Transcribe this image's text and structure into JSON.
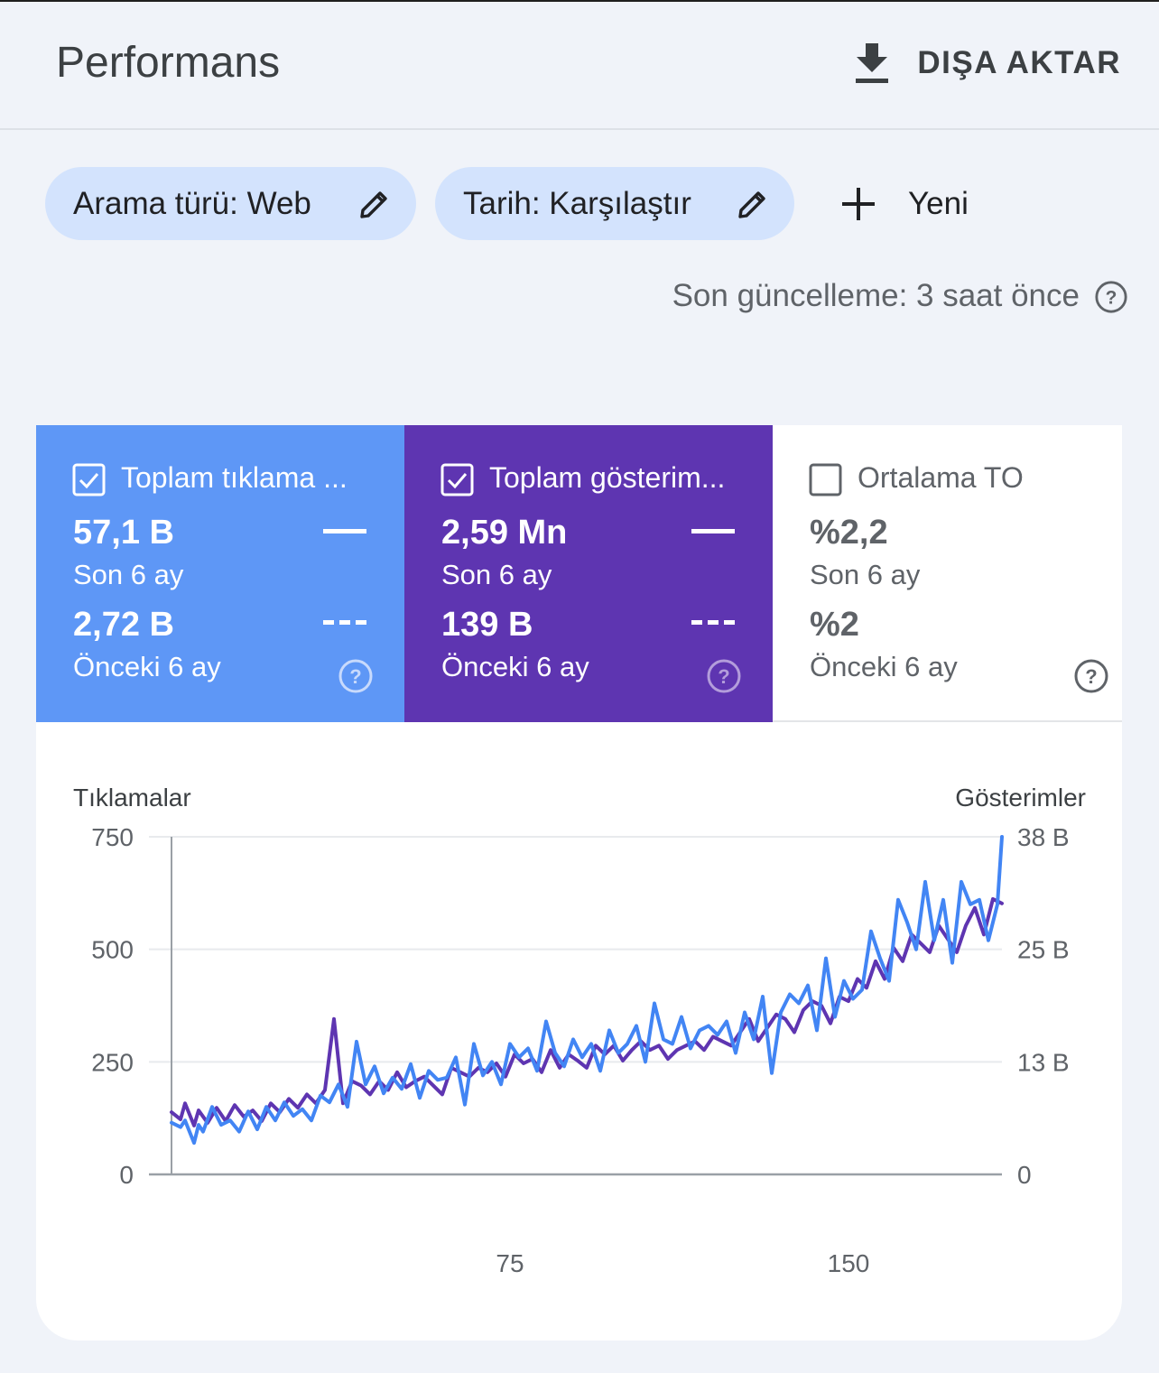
{
  "header": {
    "title": "Performans",
    "export_label": "DIŞA AKTAR",
    "export_icon": "download-icon"
  },
  "filters": {
    "chips": [
      {
        "label": "Arama türü: Web",
        "icon": "edit-icon"
      },
      {
        "label": "Tarih: Karşılaştır",
        "icon": "edit-icon"
      }
    ],
    "new_label": "Yeni",
    "new_icon": "plus-icon"
  },
  "last_update": "Son güncelleme: 3 saat önce",
  "metrics": [
    {
      "title": "Toplam tıklama ...",
      "checked": true,
      "value_current": "57,1 B",
      "label_current": "Son 6 ay",
      "value_previous": "2,72 B",
      "label_previous": "Önceki 6 ay",
      "color": "#5e97f6"
    },
    {
      "title": "Toplam gösterim...",
      "checked": true,
      "value_current": "2,59 Mn",
      "label_current": "Son 6 ay",
      "value_previous": "139 B",
      "label_previous": "Önceki 6 ay",
      "color": "#5e35b1"
    },
    {
      "title": "Ortalama TO",
      "checked": false,
      "value_current": "%2,2",
      "label_current": "Son 6 ay",
      "value_previous": "%2",
      "label_previous": "Önceki 6 ay",
      "color": "#ffffff"
    }
  ],
  "chart_data": {
    "type": "line",
    "y_left_title": "Tıklamalar",
    "y_right_title": "Gösterimler",
    "y_left_ticks": [
      "750",
      "500",
      "250",
      "0"
    ],
    "y_right_ticks": [
      "38 B",
      "25 B",
      "13 B",
      "0"
    ],
    "x_ticks": [
      "75",
      "150"
    ],
    "ylim_left": [
      0,
      750
    ],
    "ylim_right": [
      0,
      38
    ],
    "xlim": [
      0,
      184
    ],
    "grid": true,
    "series": [
      {
        "color": "#5e35b1",
        "axis": "right",
        "x": [
          0,
          2,
          3,
          5,
          6,
          8,
          10,
          12,
          14,
          16,
          18,
          20,
          22,
          24,
          26,
          28,
          30,
          32,
          34,
          36,
          38,
          40,
          42,
          44,
          46,
          48,
          50,
          52,
          54,
          56,
          58,
          60,
          62,
          64,
          66,
          68,
          70,
          72,
          74,
          76,
          78,
          80,
          82,
          84,
          86,
          88,
          90,
          92,
          94,
          96,
          98,
          100,
          102,
          104,
          106,
          108,
          110,
          112,
          114,
          116,
          118,
          120,
          122,
          124,
          126,
          128,
          130,
          132,
          134,
          136,
          138,
          140,
          142,
          144,
          146,
          148,
          150,
          152,
          154,
          156,
          158,
          160,
          162,
          164,
          166,
          168,
          170,
          172,
          174,
          176,
          178,
          180,
          182,
          184
        ],
        "y": [
          7.0,
          6.2,
          8.0,
          5.5,
          7.2,
          5.8,
          7.5,
          6.0,
          7.8,
          6.5,
          7.2,
          6.0,
          8.0,
          7.0,
          8.5,
          7.5,
          9.0,
          8.0,
          9.5,
          17.5,
          8.0,
          10.5,
          10.0,
          9.0,
          10.5,
          9.5,
          11.5,
          9.8,
          10.5,
          11.0,
          10.0,
          9.0,
          12.0,
          11.5,
          11.0,
          12.0,
          11.5,
          12.5,
          11.0,
          13.5,
          12.5,
          13.0,
          11.5,
          14.0,
          12.0,
          13.5,
          12.8,
          12.0,
          14.5,
          13.5,
          14.5,
          12.8,
          14.0,
          15.0,
          14.0,
          14.5,
          13.0,
          14.0,
          14.5,
          15.0,
          14.0,
          15.5,
          15.0,
          14.5,
          16.0,
          17.5,
          15.0,
          16.5,
          18.0,
          17.5,
          16.0,
          18.5,
          19.5,
          19.0,
          17.0,
          20.0,
          19.5,
          22.0,
          21.0,
          24.0,
          22.0,
          25.5,
          24.0,
          27.0,
          26.0,
          25.0,
          28.0,
          26.5,
          25.0,
          28.0,
          30.0,
          27.0,
          31.0,
          30.5
        ]
      },
      {
        "color": "#4285f4",
        "axis": "left",
        "x": [
          0,
          2,
          3,
          5,
          6,
          7,
          9,
          11,
          13,
          15,
          17,
          19,
          21,
          23,
          25,
          27,
          29,
          31,
          33,
          35,
          37,
          39,
          41,
          43,
          45,
          47,
          49,
          51,
          53,
          55,
          57,
          59,
          61,
          63,
          65,
          67,
          69,
          71,
          73,
          75,
          77,
          79,
          81,
          83,
          85,
          87,
          89,
          91,
          93,
          95,
          97,
          99,
          101,
          103,
          105,
          107,
          109,
          111,
          113,
          115,
          117,
          119,
          121,
          123,
          125,
          127,
          129,
          131,
          133,
          135,
          137,
          139,
          141,
          143,
          145,
          147,
          149,
          151,
          153,
          155,
          157,
          159,
          161,
          163,
          165,
          167,
          169,
          171,
          173,
          175,
          177,
          179,
          181,
          183,
          184
        ],
        "y": [
          115,
          105,
          120,
          70,
          110,
          95,
          150,
          110,
          120,
          95,
          140,
          100,
          150,
          120,
          160,
          130,
          145,
          120,
          175,
          160,
          200,
          150,
          295,
          200,
          240,
          180,
          215,
          190,
          245,
          170,
          230,
          210,
          215,
          260,
          155,
          290,
          220,
          250,
          200,
          290,
          260,
          280,
          230,
          340,
          270,
          240,
          300,
          260,
          290,
          230,
          320,
          270,
          290,
          330,
          250,
          380,
          300,
          290,
          350,
          280,
          320,
          330,
          310,
          340,
          270,
          360,
          300,
          395,
          225,
          360,
          400,
          380,
          420,
          320,
          480,
          350,
          430,
          390,
          410,
          540,
          480,
          430,
          610,
          560,
          500,
          650,
          520,
          610,
          470,
          650,
          600,
          610,
          520,
          600,
          750
        ]
      }
    ]
  }
}
